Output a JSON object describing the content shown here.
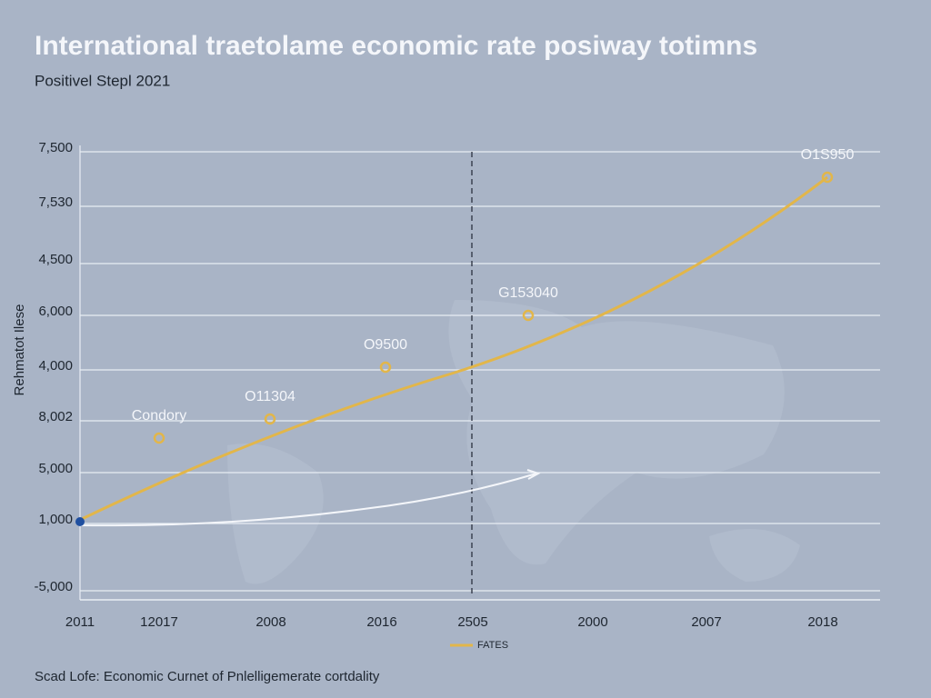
{
  "header": {
    "title": "International traetolame economic rate posiway totimns",
    "subtitle": "Positivel Stepl 2021"
  },
  "axis": {
    "y_title": "Rehmatot Ilese",
    "y_labels": [
      "7,500",
      "7,530",
      "4,500",
      "6,000",
      "4,000",
      "8,002",
      "5,000",
      "1,000",
      "-5,000"
    ],
    "x_labels": [
      "2011",
      "12017",
      "2008",
      "2016",
      "2505",
      "2000",
      "2007",
      "2018"
    ]
  },
  "annotations": [
    "Condory",
    "O11304",
    "O9500",
    "G153040",
    "O1S950"
  ],
  "legend": {
    "label": "FATES"
  },
  "footer": "Scad Lofe: Economic Curnet of Pnlelligemerate cortdality"
}
